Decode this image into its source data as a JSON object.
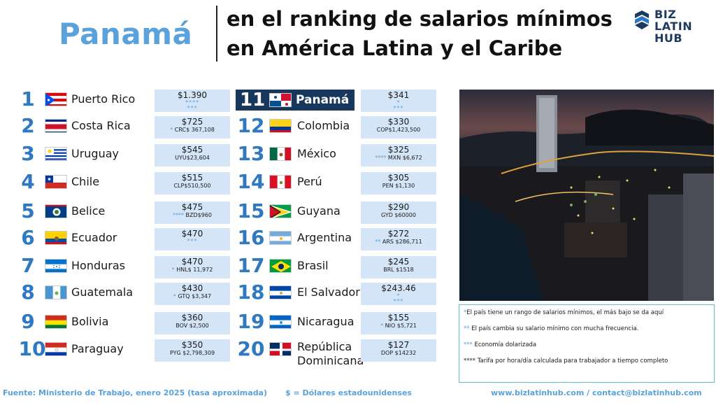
{
  "header": {
    "country": "Panamá",
    "title_line1": "en el ranking de salarios mínimos",
    "title_line2": "en América Latina y el Caribe",
    "logo_line1": "BIZ LATIN",
    "logo_line2": "HUB"
  },
  "left_list": [
    {
      "rank": "1",
      "country": "Puerto Rico",
      "usd": "$1.390",
      "local": "",
      "marks": "****",
      "marks2": "***"
    },
    {
      "rank": "2",
      "country": "Costa Rica",
      "usd": "$725",
      "local": "CRC$ 367,108",
      "marks": "*",
      "marks2": ""
    },
    {
      "rank": "3",
      "country": "Uruguay",
      "usd": "$545",
      "local": "UYU$23,604",
      "marks": "",
      "marks2": ""
    },
    {
      "rank": "4",
      "country": "Chile",
      "usd": "$515",
      "local": "CLP$510,500",
      "marks": "",
      "marks2": ""
    },
    {
      "rank": "5",
      "country": "Belice",
      "usd": "$475",
      "local": "BZD$960",
      "marks": "****",
      "marks2": ""
    },
    {
      "rank": "6",
      "country": "Ecuador",
      "usd": "$470",
      "local": "",
      "marks": "***",
      "marks2": ""
    },
    {
      "rank": "7",
      "country": "Honduras",
      "usd": "$470",
      "local": "HNL$ 11,972",
      "marks": "*",
      "marks2": ""
    },
    {
      "rank": "8",
      "country": "Guatemala",
      "usd": "$430",
      "local": "GTQ $3,347",
      "marks": "*",
      "marks2": ""
    },
    {
      "rank": "9",
      "country": "Bolivia",
      "usd": "$360",
      "local": "BOV $2,500",
      "marks": "",
      "marks2": ""
    },
    {
      "rank": "10",
      "country": "Paraguay",
      "usd": "$350",
      "local": "PYG $2,798,309",
      "marks": "",
      "marks2": ""
    }
  ],
  "right_list": [
    {
      "rank": "11",
      "country": "Panamá",
      "usd": "$341",
      "local": "",
      "marks": "*",
      "marks2": "***"
    },
    {
      "rank": "12",
      "country": "Colombia",
      "usd": "$330",
      "local": "COP$1,423,500",
      "marks": "",
      "marks2": ""
    },
    {
      "rank": "13",
      "country": "México",
      "usd": "$325",
      "local": "MXN $6,672",
      "marks": "****",
      "marks2": ""
    },
    {
      "rank": "14",
      "country": "Perú",
      "usd": "$305",
      "local": "PEN $1,130",
      "marks": "",
      "marks2": ""
    },
    {
      "rank": "15",
      "country": "Guyana",
      "usd": "$290",
      "local": "GYD $60000",
      "marks": "",
      "marks2": ""
    },
    {
      "rank": "16",
      "country": "Argentina",
      "usd": "$272",
      "local": "ARS $286,711",
      "marks": "**",
      "marks2": ""
    },
    {
      "rank": "17",
      "country": "Brasil",
      "usd": "$245",
      "local": "BRL $1518",
      "marks": "",
      "marks2": ""
    },
    {
      "rank": "18",
      "country": "El Salvador",
      "usd": "$243.46",
      "local": "",
      "marks": "*",
      "marks2": "***"
    },
    {
      "rank": "19",
      "country": "Nicaragua",
      "usd": "$155",
      "local": "NIO $5,721",
      "marks": "*",
      "marks2": ""
    },
    {
      "rank": "20",
      "country": "República Dominicana",
      "usd": "$127",
      "local": "DOP $14232",
      "marks": "",
      "marks2": ""
    }
  ],
  "legend": {
    "l1_key": "*",
    "l1": "El país tiene un rango de salarios mínimos, el más bajo se da aquí",
    "l2_key": "**",
    "l2": "El país cambia su salario mínimo con mucha frecuencia.",
    "l3_key": "***",
    "l3": "Economía dolarizada",
    "l4_key": "****",
    "l4": "Tarifa por hora/día calculada para trabajador a tiempo completo"
  },
  "footer": {
    "source": "Fuente: Ministerio de Trabajo, enero 2025 (tasa aproximada)",
    "usd_note": "$ = Dólares estadounidenses",
    "web": "www.bizlatinhub.com / contact@bizlatinhub.com"
  }
}
